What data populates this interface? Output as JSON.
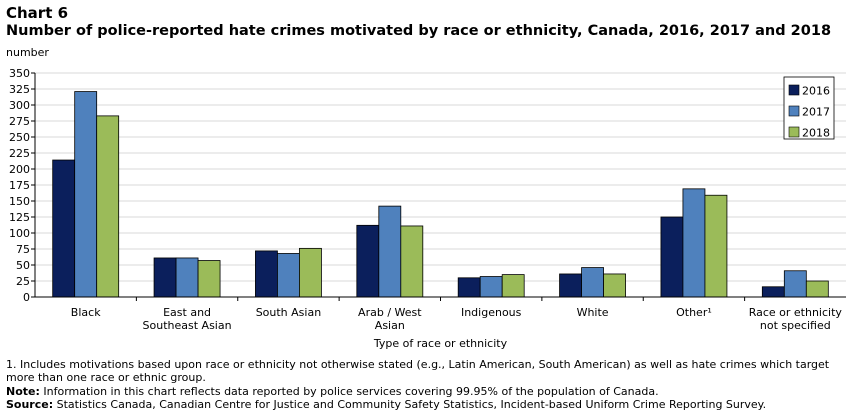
{
  "header": {
    "chart_number": "Chart 6",
    "title": "Number of police-reported hate crimes motivated by race or ethnicity, Canada, 2016, 2017 and 2018"
  },
  "colors": {
    "2016": "#0b1f5c",
    "2017": "#4f81bd",
    "2018": "#9bbb59",
    "grid": "#d9d9d9",
    "axis": "#000000"
  },
  "chart_data": {
    "type": "bar",
    "ylabel": "number",
    "xlabel": "Type of race or ethnicity",
    "ylim": [
      0,
      350
    ],
    "yticks": [
      0,
      25,
      50,
      75,
      100,
      125,
      150,
      175,
      200,
      225,
      250,
      275,
      300,
      325,
      350
    ],
    "grid": true,
    "legend_position": "top-right",
    "categories": [
      [
        "Black"
      ],
      [
        "East and",
        "Southeast Asian"
      ],
      [
        "South Asian"
      ],
      [
        "Arab / West",
        "Asian"
      ],
      [
        "Indigenous"
      ],
      [
        "White"
      ],
      [
        "Other¹"
      ],
      [
        "Race or ethnicity",
        "not specified"
      ]
    ],
    "series": [
      {
        "name": "2016",
        "color": "#0b1f5c",
        "values": [
          214,
          61,
          72,
          112,
          30,
          36,
          125,
          16
        ]
      },
      {
        "name": "2017",
        "color": "#4f81bd",
        "values": [
          321,
          61,
          68,
          142,
          32,
          46,
          169,
          41
        ]
      },
      {
        "name": "2018",
        "color": "#9bbb59",
        "values": [
          283,
          57,
          76,
          111,
          35,
          36,
          159,
          25
        ]
      }
    ]
  },
  "notes": {
    "footnote_1": "1. Includes motivations based upon race or ethnicity not otherwise stated (e.g., Latin American, South American) as well as hate crimes which target more than one race or ethnic group.",
    "note_label": "Note:",
    "note_text": " Information in this chart reflects data reported by police services covering 99.95% of the population of Canada.",
    "source_label": "Source:",
    "source_text": " Statistics Canada, Canadian Centre for Justice and Community Safety Statistics, Incident-based Uniform Crime Reporting Survey."
  }
}
